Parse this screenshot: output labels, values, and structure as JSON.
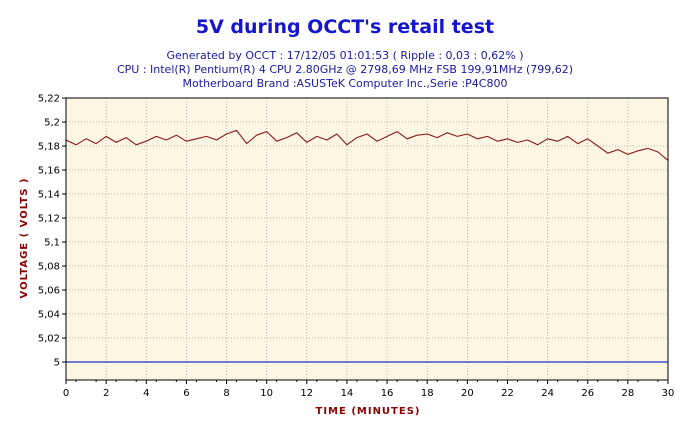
{
  "header": {
    "title": "5V during OCCT's retail test",
    "line1": "Generated by OCCT : 17/12/05 01:01:53 ( Ripple : 0,03 : 0,62% )",
    "line2": "CPU : Intel(R) Pentium(R) 4 CPU 2.80GHz @ 2798,69 MHz FSB 199,91MHz (799,62)",
    "line3": "Motherboard Brand :ASUSTeK Computer Inc.,Serie :P4C800"
  },
  "chart_data": {
    "type": "line",
    "xlabel": "TIME (MINUTES)",
    "ylabel": "VOLTAGE ( VOLTS )",
    "xlim": [
      0,
      30
    ],
    "ylim": [
      4.985,
      5.22
    ],
    "x_ticks": [
      "0",
      "2",
      "4",
      "6",
      "8",
      "10",
      "12",
      "14",
      "16",
      "18",
      "20",
      "22",
      "24",
      "26",
      "28",
      "30"
    ],
    "y_ticks": [
      {
        "v": 5.22,
        "label": "5,22"
      },
      {
        "v": 5.2,
        "label": "5,2"
      },
      {
        "v": 5.18,
        "label": "5,18"
      },
      {
        "v": 5.16,
        "label": "5,16"
      },
      {
        "v": 5.14,
        "label": "5,14"
      },
      {
        "v": 5.12,
        "label": "5,12"
      },
      {
        "v": 5.1,
        "label": "5,1"
      },
      {
        "v": 5.08,
        "label": "5,08"
      },
      {
        "v": 5.06,
        "label": "5,06"
      },
      {
        "v": 5.04,
        "label": "5,04"
      },
      {
        "v": 5.02,
        "label": "5,02"
      },
      {
        "v": 5.0,
        "label": "5"
      }
    ],
    "grid": true,
    "colors": {
      "background": "#fdf6e3",
      "grid": "#9a9a9a",
      "line": "#8b1a1a",
      "reference": "#2030c0"
    },
    "reference_line": 5.0,
    "series": [
      {
        "x": [
          0,
          0.5,
          1,
          1.5,
          2,
          2.5,
          3,
          3.5,
          4,
          4.5,
          5,
          5.5,
          6,
          6.5,
          7,
          7.5,
          8,
          8.5,
          9,
          9.5,
          10,
          10.5,
          11,
          11.5,
          12,
          12.5,
          13,
          13.5,
          14,
          14.5,
          15,
          15.5,
          16,
          16.5,
          17,
          17.5,
          18,
          18.5,
          19,
          19.5,
          20,
          20.5,
          21,
          21.5,
          22,
          22.5,
          23,
          23.5,
          24,
          24.5,
          25,
          25.5,
          26,
          26.5,
          27,
          27.5,
          28,
          28.5,
          29,
          29.5,
          30
        ],
        "y": [
          5.185,
          5.181,
          5.186,
          5.182,
          5.188,
          5.183,
          5.187,
          5.181,
          5.184,
          5.188,
          5.185,
          5.189,
          5.184,
          5.186,
          5.188,
          5.185,
          5.19,
          5.193,
          5.182,
          5.189,
          5.192,
          5.184,
          5.187,
          5.191,
          5.183,
          5.188,
          5.185,
          5.19,
          5.181,
          5.187,
          5.19,
          5.184,
          5.188,
          5.192,
          5.186,
          5.189,
          5.19,
          5.187,
          5.191,
          5.188,
          5.19,
          5.186,
          5.188,
          5.184,
          5.186,
          5.183,
          5.185,
          5.181,
          5.186,
          5.184,
          5.188,
          5.182,
          5.186,
          5.18,
          5.174,
          5.177,
          5.173,
          5.176,
          5.178,
          5.175,
          5.168
        ]
      }
    ]
  }
}
